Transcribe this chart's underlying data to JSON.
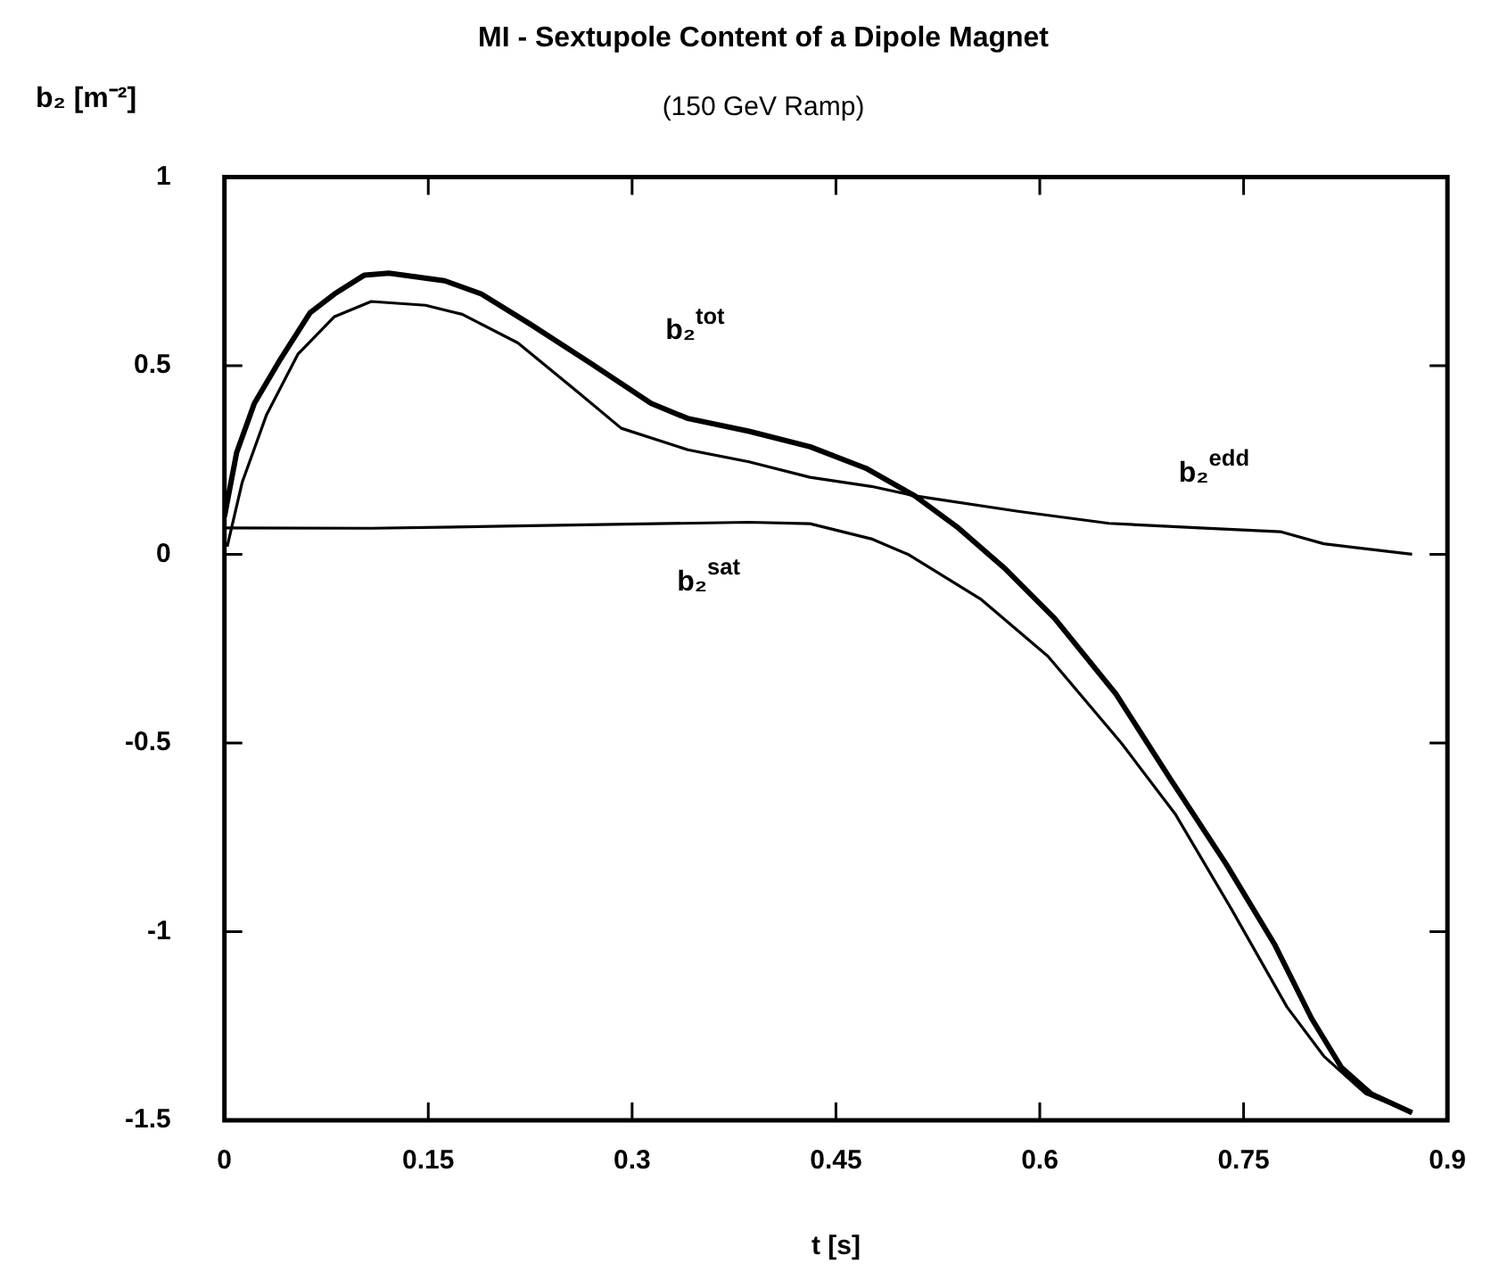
{
  "chart_data": {
    "type": "line",
    "title": "MI - Sextupole Content of a Dipole Magnet",
    "subtitle": "(150 GeV Ramp)",
    "xlabel": "t [s]",
    "ylabel": "b₂ [m⁻²]",
    "xlim": [
      0,
      0.9
    ],
    "xticks": [
      0,
      0.15,
      0.3,
      0.45,
      0.6,
      0.75,
      0.9
    ],
    "ylim": [
      -1.5,
      1
    ],
    "yticks": [
      -1.5,
      -1,
      -0.5,
      0,
      0.5,
      1
    ],
    "grid": false,
    "legend": false,
    "marker": "none",
    "line_style": "solid",
    "series": [
      {
        "name": "b₂$^{tot}$",
        "color": "#000000",
        "x": [
          0,
          0.009,
          0.022,
          0.04,
          0.063,
          0.081,
          0.103,
          0.121,
          0.162,
          0.189,
          0.225,
          0.27,
          0.314,
          0.341,
          0.386,
          0.431,
          0.472,
          0.508,
          0.539,
          0.575,
          0.611,
          0.656,
          0.696,
          0.737,
          0.773,
          0.8,
          0.822,
          0.844,
          0.874
        ],
        "values": [
          0.1,
          0.27,
          0.4,
          0.51,
          0.64,
          0.69,
          0.74,
          0.745,
          0.725,
          0.69,
          0.61,
          0.505,
          0.4,
          0.36,
          0.326,
          0.285,
          0.228,
          0.155,
          0.073,
          -0.04,
          -0.17,
          -0.37,
          -0.595,
          -0.82,
          -1.035,
          -1.23,
          -1.36,
          -1.43,
          -1.48
        ]
      },
      {
        "name": "b₂$^{edd}$",
        "color": "#000000",
        "x": [
          0.002,
          0.013,
          0.031,
          0.054,
          0.081,
          0.108,
          0.148,
          0.175,
          0.216,
          0.26,
          0.292,
          0.341,
          0.386,
          0.431,
          0.476,
          0.508,
          0.584,
          0.651,
          0.718,
          0.777,
          0.809,
          0.874
        ],
        "values": [
          0.02,
          0.19,
          0.37,
          0.53,
          0.63,
          0.67,
          0.66,
          0.636,
          0.56,
          0.43,
          0.334,
          0.277,
          0.245,
          0.204,
          0.18,
          0.155,
          0.114,
          0.082,
          0.07,
          0.06,
          0.028,
          0
        ]
      },
      {
        "name": "b₂$^{sat}$",
        "color": "#000000",
        "x": [
          0,
          0.108,
          0.215,
          0.386,
          0.431,
          0.476,
          0.503,
          0.557,
          0.606,
          0.66,
          0.7,
          0.741,
          0.782,
          0.809,
          0.84,
          0.874
        ],
        "values": [
          0.07,
          0.069,
          0.075,
          0.085,
          0.081,
          0.041,
          0,
          -0.12,
          -0.27,
          -0.5,
          -0.69,
          -0.94,
          -1.2,
          -1.33,
          -1.43,
          -1.48
        ]
      }
    ]
  }
}
